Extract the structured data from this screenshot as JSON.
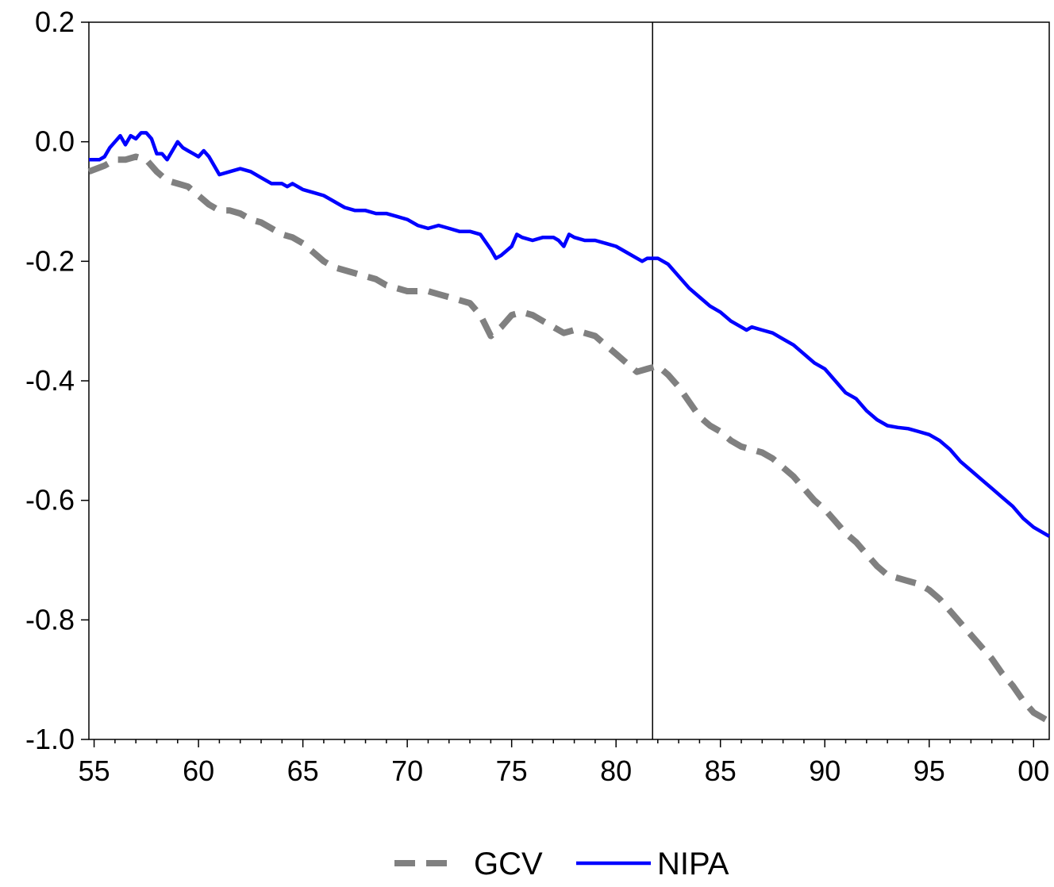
{
  "chart_data": {
    "type": "line",
    "title": "",
    "xlabel": "",
    "ylabel": "",
    "xlim": [
      1954.75,
      2000.75
    ],
    "ylim": [
      -1.0,
      0.2
    ],
    "grid": false,
    "legend_position": "bottom-center",
    "x_ticks": [
      {
        "value": 1955,
        "label": "55"
      },
      {
        "value": 1960,
        "label": "60"
      },
      {
        "value": 1965,
        "label": "65"
      },
      {
        "value": 1970,
        "label": "70"
      },
      {
        "value": 1975,
        "label": "75"
      },
      {
        "value": 1980,
        "label": "80"
      },
      {
        "value": 1985,
        "label": "85"
      },
      {
        "value": 1990,
        "label": "90"
      },
      {
        "value": 1995,
        "label": "95"
      },
      {
        "value": 2000,
        "label": "00"
      }
    ],
    "y_ticks": [
      {
        "value": 0.2,
        "label": "0.2"
      },
      {
        "value": 0.0,
        "label": "0.0"
      },
      {
        "value": -0.2,
        "label": "-0.2"
      },
      {
        "value": -0.4,
        "label": "-0.4"
      },
      {
        "value": -0.6,
        "label": "-0.6"
      },
      {
        "value": -0.8,
        "label": "-0.8"
      },
      {
        "value": -1.0,
        "label": "-1.0"
      }
    ],
    "vertical_line_x": 1981.75,
    "series": [
      {
        "name": "GCV",
        "color": "#808080",
        "style": "dashed",
        "points": [
          [
            1954.75,
            -0.05
          ],
          [
            1955.5,
            -0.04
          ],
          [
            1956,
            -0.03
          ],
          [
            1956.5,
            -0.03
          ],
          [
            1957,
            -0.025
          ],
          [
            1957.5,
            -0.03
          ],
          [
            1958,
            -0.05
          ],
          [
            1958.5,
            -0.065
          ],
          [
            1959,
            -0.07
          ],
          [
            1959.5,
            -0.075
          ],
          [
            1960,
            -0.09
          ],
          [
            1960.5,
            -0.105
          ],
          [
            1961,
            -0.115
          ],
          [
            1961.5,
            -0.115
          ],
          [
            1962,
            -0.12
          ],
          [
            1962.5,
            -0.13
          ],
          [
            1963,
            -0.135
          ],
          [
            1963.5,
            -0.145
          ],
          [
            1964,
            -0.155
          ],
          [
            1964.5,
            -0.16
          ],
          [
            1965,
            -0.17
          ],
          [
            1965.5,
            -0.185
          ],
          [
            1966,
            -0.2
          ],
          [
            1966.5,
            -0.21
          ],
          [
            1967,
            -0.215
          ],
          [
            1967.5,
            -0.22
          ],
          [
            1968,
            -0.225
          ],
          [
            1968.5,
            -0.23
          ],
          [
            1969,
            -0.24
          ],
          [
            1969.5,
            -0.245
          ],
          [
            1970,
            -0.25
          ],
          [
            1970.5,
            -0.25
          ],
          [
            1971,
            -0.25
          ],
          [
            1971.5,
            -0.255
          ],
          [
            1972,
            -0.26
          ],
          [
            1972.5,
            -0.265
          ],
          [
            1973,
            -0.27
          ],
          [
            1973.5,
            -0.29
          ],
          [
            1974,
            -0.325
          ],
          [
            1974.5,
            -0.31
          ],
          [
            1975,
            -0.29
          ],
          [
            1975.5,
            -0.285
          ],
          [
            1976,
            -0.29
          ],
          [
            1976.5,
            -0.3
          ],
          [
            1977,
            -0.31
          ],
          [
            1977.5,
            -0.32
          ],
          [
            1978,
            -0.315
          ],
          [
            1978.5,
            -0.32
          ],
          [
            1979,
            -0.325
          ],
          [
            1979.5,
            -0.34
          ],
          [
            1980,
            -0.355
          ],
          [
            1980.5,
            -0.37
          ],
          [
            1981,
            -0.385
          ],
          [
            1981.5,
            -0.38
          ],
          [
            1982,
            -0.375
          ],
          [
            1982.5,
            -0.39
          ],
          [
            1983,
            -0.41
          ],
          [
            1983.5,
            -0.435
          ],
          [
            1984,
            -0.46
          ],
          [
            1984.5,
            -0.475
          ],
          [
            1985,
            -0.485
          ],
          [
            1985.5,
            -0.5
          ],
          [
            1986,
            -0.51
          ],
          [
            1986.5,
            -0.515
          ],
          [
            1987,
            -0.52
          ],
          [
            1987.5,
            -0.53
          ],
          [
            1988,
            -0.545
          ],
          [
            1988.5,
            -0.56
          ],
          [
            1989,
            -0.58
          ],
          [
            1989.5,
            -0.6
          ],
          [
            1990,
            -0.615
          ],
          [
            1990.5,
            -0.635
          ],
          [
            1991,
            -0.655
          ],
          [
            1991.5,
            -0.67
          ],
          [
            1992,
            -0.69
          ],
          [
            1992.5,
            -0.71
          ],
          [
            1993,
            -0.725
          ],
          [
            1993.5,
            -0.73
          ],
          [
            1994,
            -0.735
          ],
          [
            1994.5,
            -0.74
          ],
          [
            1995,
            -0.75
          ],
          [
            1995.5,
            -0.765
          ],
          [
            1996,
            -0.785
          ],
          [
            1996.5,
            -0.805
          ],
          [
            1997,
            -0.825
          ],
          [
            1997.5,
            -0.845
          ],
          [
            1998,
            -0.865
          ],
          [
            1998.5,
            -0.89
          ],
          [
            1999,
            -0.91
          ],
          [
            1999.5,
            -0.935
          ],
          [
            2000,
            -0.955
          ],
          [
            2000.75,
            -0.97
          ]
        ]
      },
      {
        "name": "NIPA",
        "color": "#0000ff",
        "style": "solid",
        "points": [
          [
            1954.75,
            -0.03
          ],
          [
            1955.25,
            -0.03
          ],
          [
            1955.5,
            -0.025
          ],
          [
            1955.75,
            -0.01
          ],
          [
            1956,
            0.0
          ],
          [
            1956.25,
            0.01
          ],
          [
            1956.5,
            -0.005
          ],
          [
            1956.75,
            0.01
          ],
          [
            1957,
            0.005
          ],
          [
            1957.25,
            0.015
          ],
          [
            1957.5,
            0.015
          ],
          [
            1957.75,
            0.005
          ],
          [
            1958,
            -0.02
          ],
          [
            1958.25,
            -0.02
          ],
          [
            1958.5,
            -0.03
          ],
          [
            1958.75,
            -0.015
          ],
          [
            1959,
            0.0
          ],
          [
            1959.25,
            -0.01
          ],
          [
            1959.5,
            -0.015
          ],
          [
            1959.75,
            -0.02
          ],
          [
            1960,
            -0.025
          ],
          [
            1960.25,
            -0.015
          ],
          [
            1960.5,
            -0.025
          ],
          [
            1960.75,
            -0.04
          ],
          [
            1961,
            -0.055
          ],
          [
            1961.5,
            -0.05
          ],
          [
            1962,
            -0.045
          ],
          [
            1962.5,
            -0.05
          ],
          [
            1963,
            -0.06
          ],
          [
            1963.5,
            -0.07
          ],
          [
            1964,
            -0.07
          ],
          [
            1964.25,
            -0.075
          ],
          [
            1964.5,
            -0.07
          ],
          [
            1965,
            -0.08
          ],
          [
            1965.5,
            -0.085
          ],
          [
            1966,
            -0.09
          ],
          [
            1966.5,
            -0.1
          ],
          [
            1967,
            -0.11
          ],
          [
            1967.5,
            -0.115
          ],
          [
            1968,
            -0.115
          ],
          [
            1968.5,
            -0.12
          ],
          [
            1969,
            -0.12
          ],
          [
            1969.5,
            -0.125
          ],
          [
            1970,
            -0.13
          ],
          [
            1970.5,
            -0.14
          ],
          [
            1971,
            -0.145
          ],
          [
            1971.5,
            -0.14
          ],
          [
            1972,
            -0.145
          ],
          [
            1972.5,
            -0.15
          ],
          [
            1973,
            -0.15
          ],
          [
            1973.5,
            -0.155
          ],
          [
            1974,
            -0.18
          ],
          [
            1974.25,
            -0.195
          ],
          [
            1974.5,
            -0.19
          ],
          [
            1975,
            -0.175
          ],
          [
            1975.25,
            -0.155
          ],
          [
            1975.5,
            -0.16
          ],
          [
            1976,
            -0.165
          ],
          [
            1976.5,
            -0.16
          ],
          [
            1977,
            -0.16
          ],
          [
            1977.25,
            -0.165
          ],
          [
            1977.5,
            -0.175
          ],
          [
            1977.75,
            -0.155
          ],
          [
            1978,
            -0.16
          ],
          [
            1978.5,
            -0.165
          ],
          [
            1979,
            -0.165
          ],
          [
            1979.5,
            -0.17
          ],
          [
            1980,
            -0.175
          ],
          [
            1980.5,
            -0.185
          ],
          [
            1981,
            -0.195
          ],
          [
            1981.25,
            -0.2
          ],
          [
            1981.5,
            -0.195
          ],
          [
            1981.75,
            -0.195
          ],
          [
            1982,
            -0.195
          ],
          [
            1982.5,
            -0.205
          ],
          [
            1983,
            -0.225
          ],
          [
            1983.5,
            -0.245
          ],
          [
            1984,
            -0.26
          ],
          [
            1984.5,
            -0.275
          ],
          [
            1985,
            -0.285
          ],
          [
            1985.5,
            -0.3
          ],
          [
            1986,
            -0.31
          ],
          [
            1986.25,
            -0.315
          ],
          [
            1986.5,
            -0.31
          ],
          [
            1987,
            -0.315
          ],
          [
            1987.5,
            -0.32
          ],
          [
            1988,
            -0.33
          ],
          [
            1988.5,
            -0.34
          ],
          [
            1989,
            -0.355
          ],
          [
            1989.5,
            -0.37
          ],
          [
            1990,
            -0.38
          ],
          [
            1990.5,
            -0.4
          ],
          [
            1991,
            -0.42
          ],
          [
            1991.5,
            -0.43
          ],
          [
            1992,
            -0.45
          ],
          [
            1992.5,
            -0.465
          ],
          [
            1993,
            -0.475
          ],
          [
            1993.5,
            -0.478
          ],
          [
            1994,
            -0.48
          ],
          [
            1994.5,
            -0.485
          ],
          [
            1995,
            -0.49
          ],
          [
            1995.5,
            -0.5
          ],
          [
            1996,
            -0.515
          ],
          [
            1996.5,
            -0.535
          ],
          [
            1997,
            -0.55
          ],
          [
            1997.5,
            -0.565
          ],
          [
            1998,
            -0.58
          ],
          [
            1998.5,
            -0.595
          ],
          [
            1999,
            -0.61
          ],
          [
            1999.5,
            -0.63
          ],
          [
            2000,
            -0.645
          ],
          [
            2000.75,
            -0.66
          ]
        ]
      }
    ]
  }
}
